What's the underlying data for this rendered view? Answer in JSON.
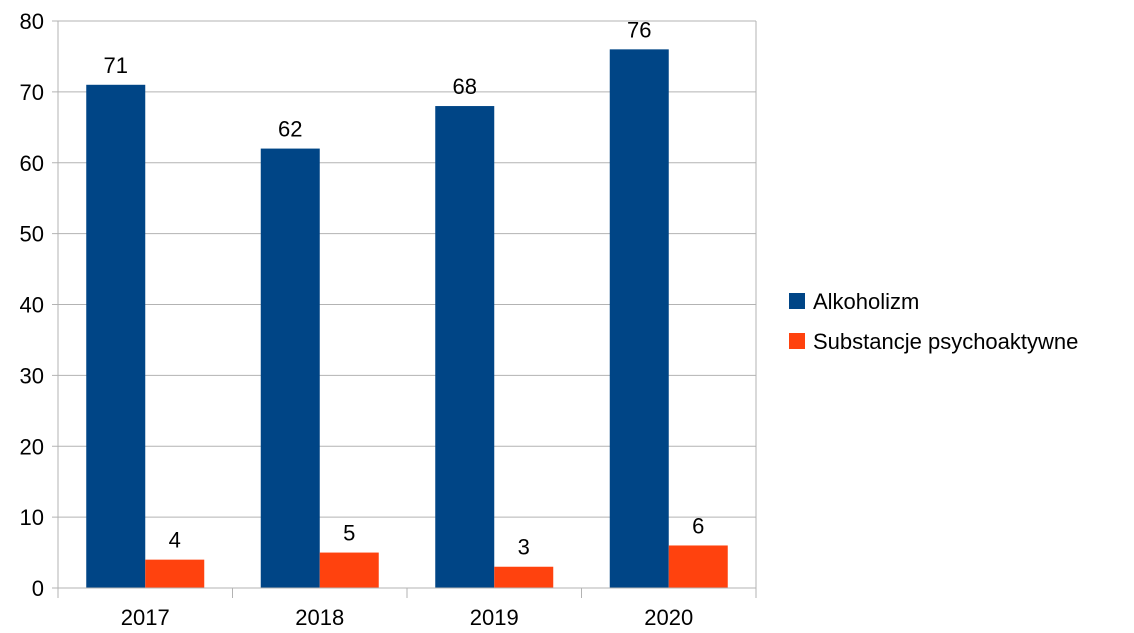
{
  "chart_data": {
    "type": "bar",
    "categories": [
      "2017",
      "2018",
      "2019",
      "2020"
    ],
    "series": [
      {
        "name": "Alkoholizm",
        "values": [
          71,
          62,
          68,
          76
        ],
        "color": "#004586"
      },
      {
        "name": "Substancje psychoaktywne",
        "values": [
          4,
          5,
          3,
          6
        ],
        "color": "#ff420e"
      }
    ],
    "title": "",
    "xlabel": "",
    "ylabel": "",
    "ylim": [
      0,
      80
    ],
    "yticks": [
      0,
      10,
      20,
      30,
      40,
      50,
      60,
      70,
      80
    ],
    "grid": true,
    "grid_color": "#b3b3b3",
    "legend_position": "right",
    "data_labels": true
  }
}
